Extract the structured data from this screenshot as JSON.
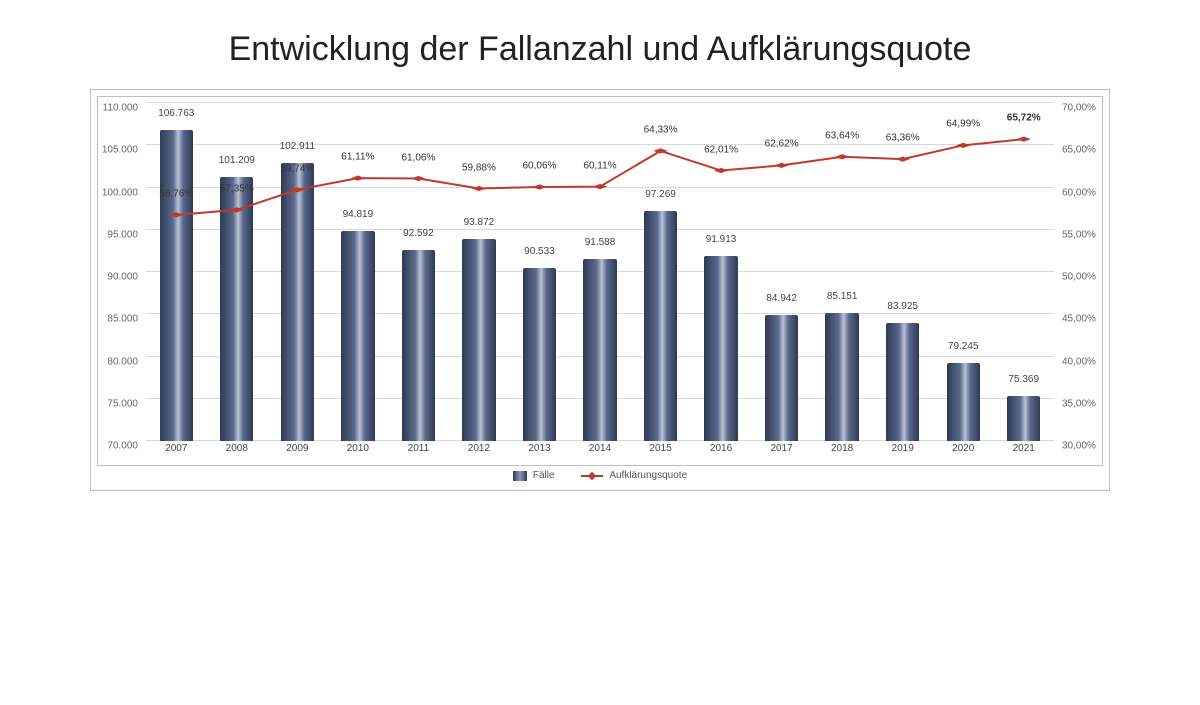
{
  "title": "Entwicklung der Fallanzahl und Aufklärungsquote",
  "chart": {
    "type": "bar+line",
    "categories": [
      "2007",
      "2008",
      "2009",
      "2010",
      "2011",
      "2012",
      "2013",
      "2014",
      "2015",
      "2016",
      "2017",
      "2018",
      "2019",
      "2020",
      "2021"
    ],
    "bars": {
      "label": "Fälle",
      "values": [
        106763,
        101209,
        102911,
        94819,
        92592,
        93872,
        90533,
        91588,
        97269,
        91913,
        84942,
        85151,
        83925,
        79245,
        75369
      ],
      "value_labels": [
        "106.763",
        "101.209",
        "102.911",
        "94.819",
        "92.592",
        "93.872",
        "90.533",
        "91.588",
        "97.269",
        "91.913",
        "84.942",
        "85.151",
        "83.925",
        "79.245",
        "75.369"
      ],
      "color_gradient": [
        "#2e3a55",
        "#5b6a8c",
        "#b8c1d6",
        "#5b6a8c",
        "#2e3a55"
      ],
      "bar_width_ratio": 0.55,
      "ylim": [
        70000,
        110000
      ],
      "ytick_step": 5000,
      "ytick_labels": [
        "70.000",
        "75.000",
        "80.000",
        "85.000",
        "90.000",
        "95.000",
        "100.000",
        "105.000",
        "110.000"
      ],
      "tick_fontsize": 10,
      "label_fontsize": 10
    },
    "line": {
      "label": "Aufklärungsquote",
      "values": [
        56.76,
        57.35,
        59.74,
        61.11,
        61.06,
        59.88,
        60.06,
        60.11,
        64.33,
        62.01,
        62.62,
        63.64,
        63.36,
        64.99,
        65.72
      ],
      "value_labels": [
        "56,76%",
        "57,35%",
        "59,74%",
        "61,11%",
        "61,06%",
        "59,88%",
        "60,06%",
        "60,11%",
        "64,33%",
        "62,01%",
        "62,62%",
        "63,64%",
        "63,36%",
        "64,99%",
        "65,72%"
      ],
      "last_bold": true,
      "color": "#c0392b",
      "marker": "diamond",
      "marker_size": 5,
      "line_width": 2,
      "ylim": [
        30,
        70
      ],
      "ytick_step": 5,
      "ytick_labels": [
        "30,00%",
        "35,00%",
        "40,00%",
        "45,00%",
        "50,00%",
        "55,00%",
        "60,00%",
        "65,00%",
        "70,00%"
      ]
    },
    "background_color": "#ffffff",
    "grid_color": "#d9d9d9",
    "border_color": "#bfbfbf",
    "title_fontsize": 34,
    "legend": {
      "bar_label": "Fälle",
      "line_label": "Aufklärungsquote"
    }
  }
}
